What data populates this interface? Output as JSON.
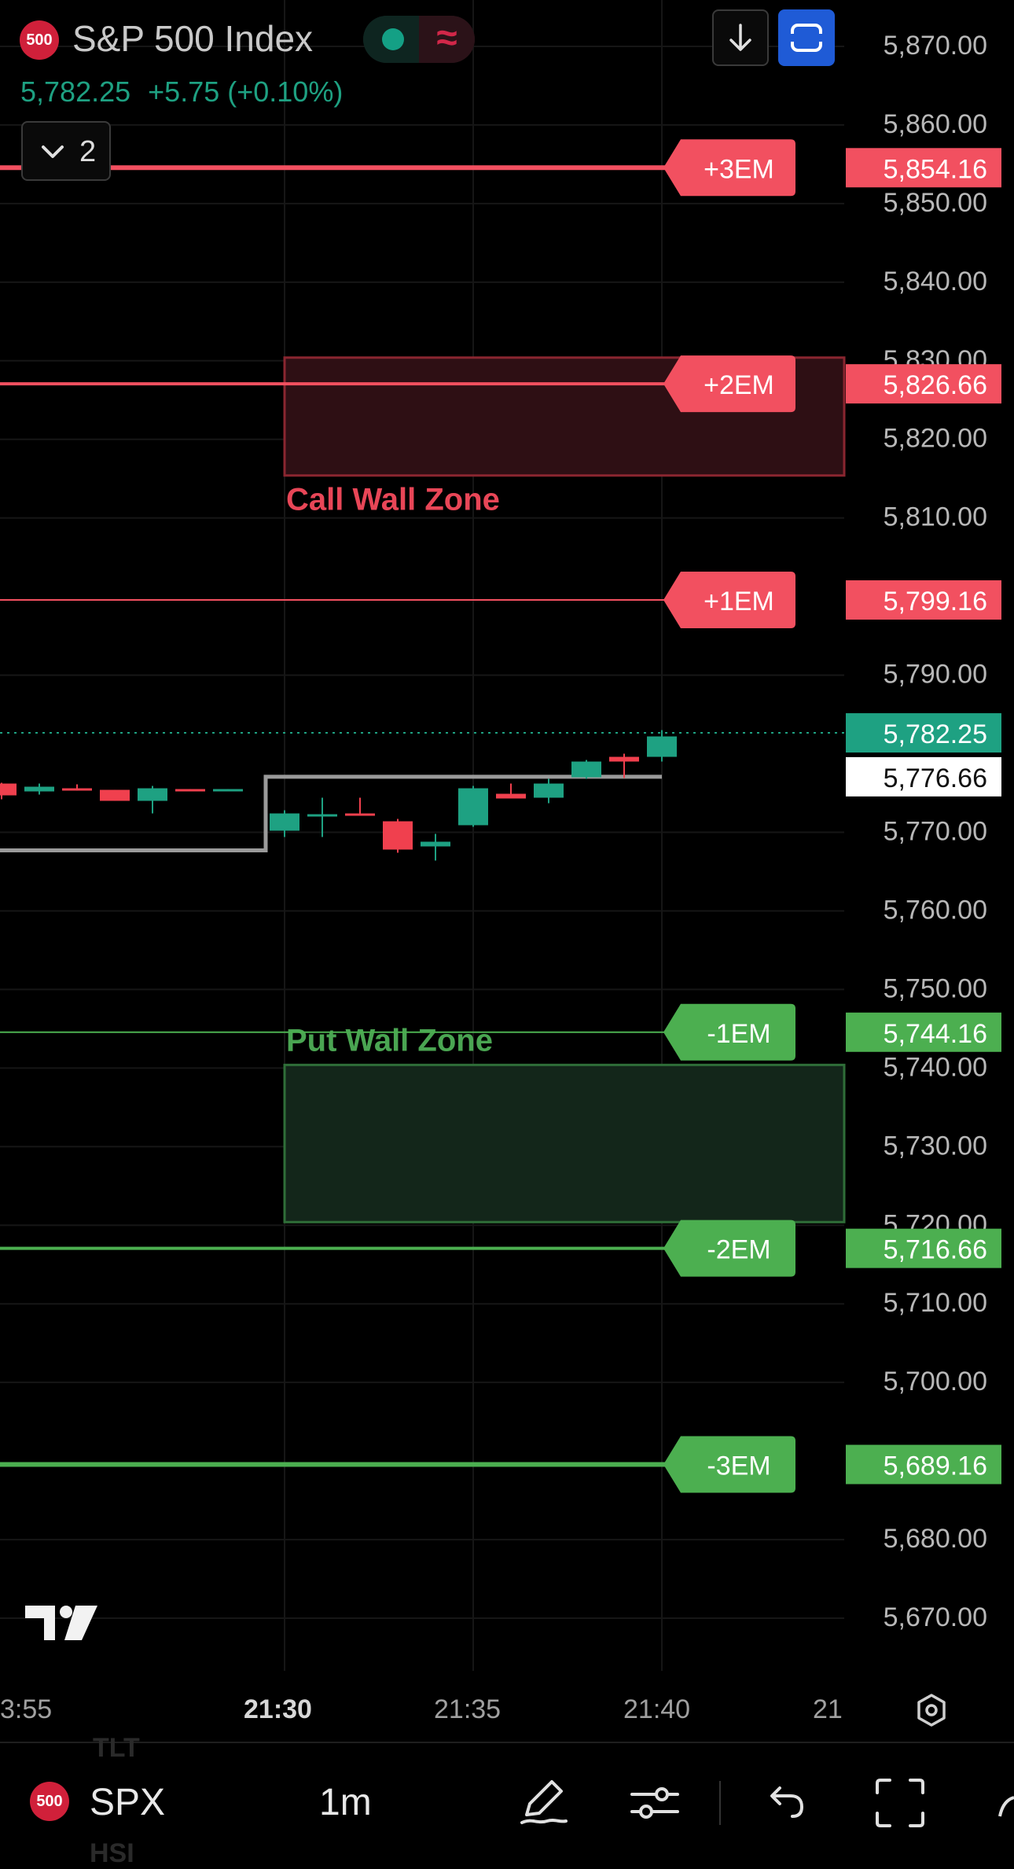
{
  "header": {
    "symbol_badge": "500",
    "symbol_name": "S&P 500 Index",
    "toggle_glyph": "≈",
    "last_price": "5,782.25",
    "change": "+5.75 (+0.10%)",
    "layers_count": "2"
  },
  "toolbar": {
    "symbol_badge": "500",
    "symbol": "SPX",
    "timeframe": "1m",
    "ghost_items": [
      "TLT",
      "HSI"
    ]
  },
  "colors": {
    "up": "#1ea182",
    "down": "#f0404e",
    "em_red": "#f25060",
    "em_green": "#4caf50",
    "ref_line": "#9a9a9a"
  },
  "icons": [
    "tradingview-logo-icon",
    "pen-icon",
    "sliders-icon",
    "undo-icon",
    "fullscreen-icon",
    "settings-icon",
    "download-icon",
    "fullscreen-toggle-icon",
    "chevron-down-icon"
  ],
  "chart_data": {
    "type": "candlestick",
    "ylim": [
      5664.4,
      5875.5
    ],
    "y_ticks": [
      {
        "value": 5870,
        "label": "5,870.00"
      },
      {
        "value": 5860,
        "label": "5,860.00"
      },
      {
        "value": 5850,
        "label": "5,850.00"
      },
      {
        "value": 5840,
        "label": "5,840.00"
      },
      {
        "value": 5830,
        "label": "5,830.00"
      },
      {
        "value": 5820,
        "label": "5,820.00"
      },
      {
        "value": 5810,
        "label": "5,810.00"
      },
      {
        "value": 5790,
        "label": "5,790.00"
      },
      {
        "value": 5770,
        "label": "5,770.00"
      },
      {
        "value": 5760,
        "label": "5,760.00"
      },
      {
        "value": 5750,
        "label": "5,750.00"
      },
      {
        "value": 5740,
        "label": "5,740.00"
      },
      {
        "value": 5730,
        "label": "5,730.00"
      },
      {
        "value": 5720,
        "label": "5,720.00"
      },
      {
        "value": 5710,
        "label": "5,710.00"
      },
      {
        "value": 5700,
        "label": "5,700.00"
      },
      {
        "value": 5680,
        "label": "5,680.00"
      },
      {
        "value": 5670,
        "label": "5,670.00"
      }
    ],
    "x_ticks": [
      {
        "minute": -22,
        "label": "3:55",
        "bold": false
      },
      {
        "minute": 0,
        "label": "21:30",
        "bold": true
      },
      {
        "minute": 5,
        "label": "21:35",
        "bold": false
      },
      {
        "minute": 10,
        "label": "21:40",
        "bold": false
      },
      {
        "minute": 15,
        "label": "21",
        "bold": false
      }
    ],
    "candles": [
      {
        "m": -7.5,
        "o": 5775.8,
        "h": 5775.9,
        "l": 5773.8,
        "c": 5774.3
      },
      {
        "m": -6.5,
        "o": 5774.8,
        "h": 5775.8,
        "l": 5774.4,
        "c": 5775.4
      },
      {
        "m": -5.5,
        "o": 5775.2,
        "h": 5775.7,
        "l": 5774.9,
        "c": 5774.9
      },
      {
        "m": -4.5,
        "o": 5775.0,
        "h": 5775.0,
        "l": 5773.6,
        "c": 5773.6
      },
      {
        "m": -3.5,
        "o": 5773.6,
        "h": 5775.5,
        "l": 5772.0,
        "c": 5775.2
      },
      {
        "m": -2.5,
        "o": 5775.1,
        "h": 5775.1,
        "l": 5775.0,
        "c": 5775.0
      },
      {
        "m": -1.5,
        "o": 5775.0,
        "h": 5775.1,
        "l": 5775.0,
        "c": 5775.1
      },
      {
        "m": 0,
        "o": 5769.8,
        "h": 5772.4,
        "l": 5769.0,
        "c": 5772.0
      },
      {
        "m": 1,
        "o": 5771.8,
        "h": 5774.0,
        "l": 5769.0,
        "c": 5771.9
      },
      {
        "m": 2,
        "o": 5772.0,
        "h": 5774.0,
        "l": 5772.0,
        "c": 5771.8
      },
      {
        "m": 3,
        "o": 5771.0,
        "h": 5771.3,
        "l": 5767.0,
        "c": 5767.4
      },
      {
        "m": 4,
        "o": 5767.8,
        "h": 5769.4,
        "l": 5766.0,
        "c": 5768.4
      },
      {
        "m": 5,
        "o": 5770.5,
        "h": 5775.5,
        "l": 5770.3,
        "c": 5775.2
      },
      {
        "m": 6,
        "o": 5774.5,
        "h": 5775.8,
        "l": 5774.0,
        "c": 5773.9
      },
      {
        "m": 7,
        "o": 5774.0,
        "h": 5776.4,
        "l": 5773.3,
        "c": 5775.8
      },
      {
        "m": 8,
        "o": 5776.6,
        "h": 5778.8,
        "l": 5776.4,
        "c": 5778.6
      },
      {
        "m": 9,
        "o": 5779.2,
        "h": 5779.6,
        "l": 5776.5,
        "c": 5778.6
      },
      {
        "m": 10,
        "o": 5779.2,
        "h": 5782.6,
        "l": 5778.6,
        "c": 5781.8
      }
    ],
    "em_levels": [
      {
        "name": "+3EM",
        "value": 5854.16,
        "label": "5,854.16",
        "kind": "red",
        "width": 6
      },
      {
        "name": "+2EM",
        "value": 5826.66,
        "label": "5,826.66",
        "kind": "red",
        "width": 4
      },
      {
        "name": "+1EM",
        "value": 5799.16,
        "label": "5,799.16",
        "kind": "red",
        "width": 2
      },
      {
        "name": "-1EM",
        "value": 5744.16,
        "label": "5,744.16",
        "kind": "green",
        "width": 2
      },
      {
        "name": "-2EM",
        "value": 5716.66,
        "label": "5,716.66",
        "kind": "green",
        "width": 4
      },
      {
        "name": "-3EM",
        "value": 5689.16,
        "label": "5,689.16",
        "kind": "green",
        "width": 6
      }
    ],
    "zones": [
      {
        "name": "Call Wall Zone",
        "from": 5815,
        "to": 5830,
        "kind": "red"
      },
      {
        "name": "Put Wall Zone",
        "from": 5720,
        "to": 5740,
        "kind": "green"
      }
    ],
    "ref_line": {
      "before": 5767.3,
      "after": 5776.66,
      "step_minute": -0.5,
      "label": "5,776.66"
    },
    "last_price": {
      "value": 5782.25,
      "label": "5,782.25"
    }
  }
}
